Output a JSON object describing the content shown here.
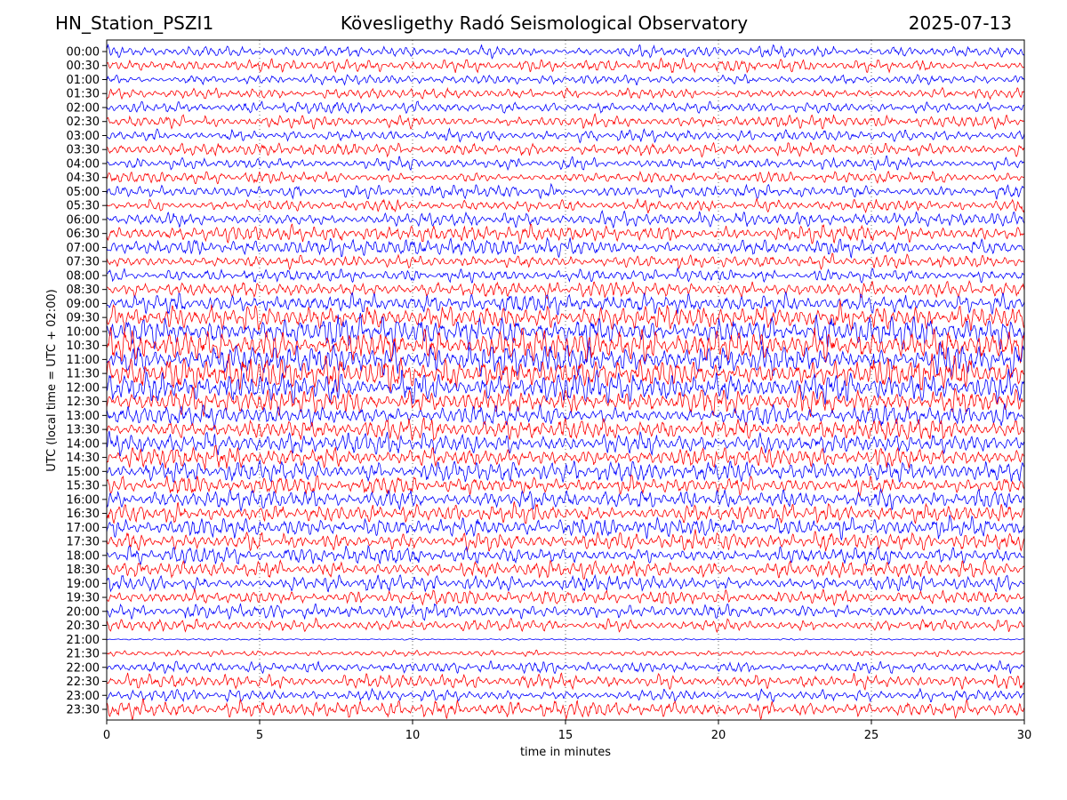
{
  "chart_data": {
    "type": "line",
    "title_left": "HN_Station_PSZI1",
    "title_center": "Kövesligethy Radó Seismological Observatory",
    "title_right": "2025-07-13",
    "xlabel": "time in minutes",
    "ylabel": "UTC (local time = UTC + 02:00)",
    "xlim": [
      0,
      30
    ],
    "xticks": [
      "0",
      "5",
      "10",
      "15",
      "20",
      "25",
      "30"
    ],
    "grid": "vertical dotted at each x tick",
    "row_labels": [
      "00:00",
      "00:30",
      "01:00",
      "01:30",
      "02:00",
      "02:30",
      "03:00",
      "03:30",
      "04:00",
      "04:30",
      "05:00",
      "05:30",
      "06:00",
      "06:30",
      "07:00",
      "07:30",
      "08:00",
      "08:30",
      "09:00",
      "09:30",
      "10:00",
      "10:30",
      "11:00",
      "11:30",
      "12:00",
      "12:30",
      "13:00",
      "13:30",
      "14:00",
      "14:30",
      "15:00",
      "15:30",
      "16:00",
      "16:30",
      "17:00",
      "17:30",
      "18:00",
      "18:30",
      "19:00",
      "19:30",
      "20:00",
      "20:30",
      "21:00",
      "21:30",
      "22:00",
      "22:30",
      "23:00",
      "23:30"
    ],
    "trace_colors": [
      "#0000ff",
      "#ff0000"
    ],
    "relative_amplitude": [
      1,
      1,
      0.8,
      0.9,
      1,
      1.1,
      1,
      1,
      1,
      1,
      1.1,
      1.1,
      1.2,
      1.4,
      1.4,
      1.2,
      1,
      1.3,
      1.6,
      2.2,
      2.6,
      2.6,
      2.8,
      2.8,
      2.6,
      2.2,
      1.8,
      1.8,
      1.8,
      1.8,
      1.7,
      1.6,
      1.6,
      1.6,
      1.6,
      1.6,
      1.5,
      1.4,
      1.3,
      1.3,
      1.2,
      1,
      0.15,
      0.5,
      1,
      1.2,
      1,
      1.4
    ]
  }
}
